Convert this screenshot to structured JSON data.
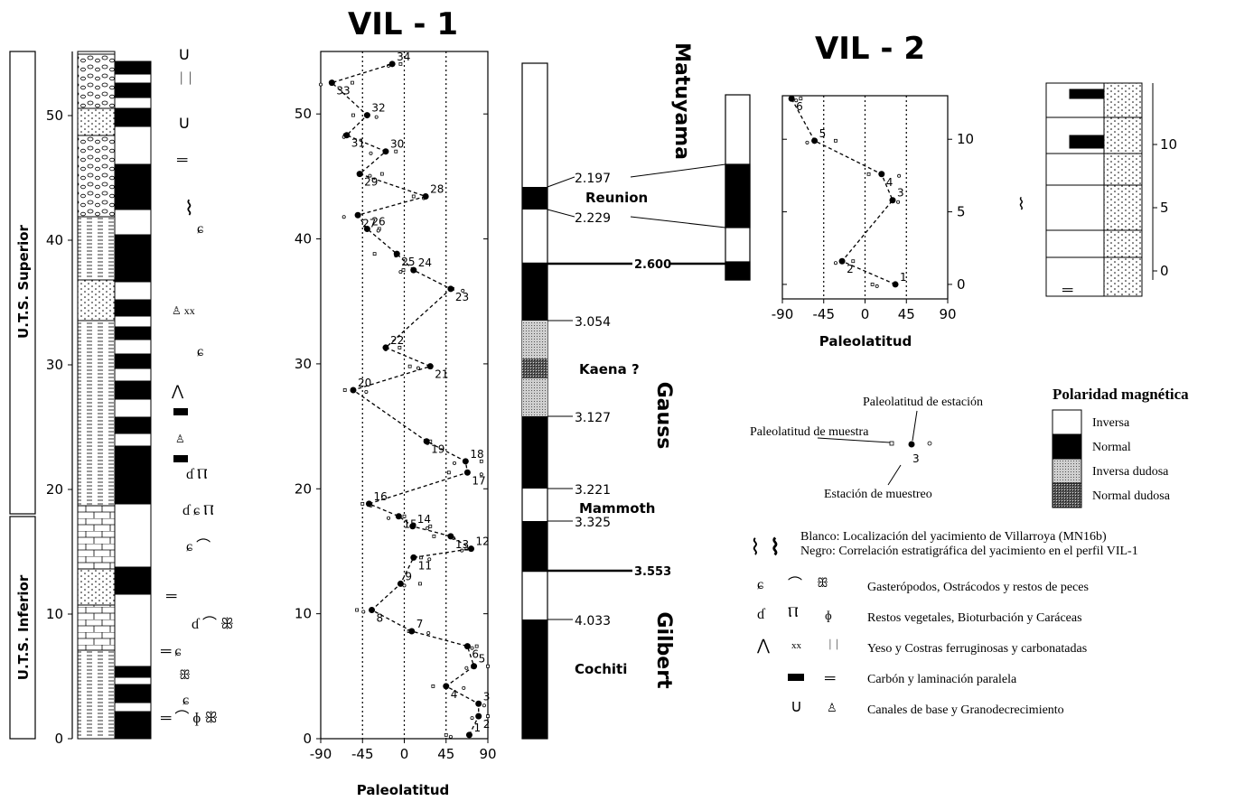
{
  "vil1": {
    "title": "VIL - 1",
    "xlabel": "Paleolatitud",
    "xticks": [
      "-90",
      "-45",
      "0",
      "45",
      "90"
    ],
    "yticks": [
      "0",
      "10",
      "20",
      "30",
      "40",
      "50"
    ],
    "xlim": [
      -90,
      90
    ],
    "ylim": [
      0,
      55
    ]
  },
  "vil2": {
    "title": "VIL - 2",
    "xlabel": "Paleolatitud",
    "xticks": [
      "-90",
      "-45",
      "0",
      "45",
      "90"
    ],
    "yticks": [
      "0",
      "5",
      "10"
    ],
    "xlim": [
      -90,
      90
    ],
    "ylim": [
      -1,
      13
    ],
    "column_ticks": [
      "0",
      "5",
      "10"
    ]
  },
  "left_column": {
    "units": [
      "U.T.S. Superior",
      "U.T.S. Inferior"
    ],
    "yticks": [
      "0",
      "10",
      "20",
      "30",
      "40",
      "50"
    ]
  },
  "timescale": {
    "chrons": [
      "Matuyama",
      "Gauss",
      "Gilbert"
    ],
    "subchrons": [
      "Reunion",
      "Kaena ?",
      "Mammoth",
      "Cochiti"
    ],
    "ages": [
      "2.197",
      "2.229",
      "2.600",
      "3.054",
      "3.127",
      "3.221",
      "3.325",
      "3.553",
      "4.033"
    ]
  },
  "legend": {
    "title": "Polaridad magnética",
    "items": [
      "Inversa",
      "Normal",
      "Inversa dudosa",
      "Normal dudosa"
    ],
    "key_station": "Paleolatitud de estación",
    "key_sample": "Paleolatitud de muestra",
    "key_site": "Estación de muestreo",
    "key_number": "3"
  },
  "symbols": {
    "fossil_1": "Blanco: Localización del yacimiento de Villarroya (MN16b)",
    "fossil_2": "Negro: Correlación estratigráfica del yacimiento en el perfil VIL-1",
    "gastropods": "Gasterópodos, Ostrácodos y restos de peces",
    "plants": "Restos vegetales, Bioturbación y Caráceas",
    "gypsum": "Yeso y Costras ferruginosas y carbonatadas",
    "coal": "Carbón y laminación paralela",
    "channels": "Canales de base y Granodecrecimiento"
  },
  "chart_data": [
    {
      "type": "line",
      "title": "VIL - 1",
      "xlabel": "Paleolatitud",
      "ylabel": "",
      "xlim": [
        -90,
        90
      ],
      "ylim": [
        0,
        55
      ],
      "series": [
        {
          "points": [
            {
              "label": "1",
              "x": 70,
              "y": 0.3
            },
            {
              "label": "2",
              "x": 80,
              "y": 1.8
            },
            {
              "label": "3",
              "x": 80,
              "y": 2.8
            },
            {
              "label": "4",
              "x": 45,
              "y": 4.2
            },
            {
              "label": "5",
              "x": 75,
              "y": 5.8
            },
            {
              "label": "6",
              "x": 68,
              "y": 7.4
            },
            {
              "label": "7",
              "x": 8,
              "y": 8.6
            },
            {
              "label": "8",
              "x": -35,
              "y": 10.3
            },
            {
              "label": "9",
              "x": -4,
              "y": 12.4
            },
            {
              "label": "11",
              "x": 10,
              "y": 14.5
            },
            {
              "label": "12",
              "x": 72,
              "y": 15.2
            },
            {
              "label": "13",
              "x": 50,
              "y": 16.2
            },
            {
              "label": "14",
              "x": 9,
              "y": 17
            },
            {
              "label": "15",
              "x": -6,
              "y": 17.8
            },
            {
              "label": "16",
              "x": -38,
              "y": 18.8
            },
            {
              "label": "17",
              "x": 68,
              "y": 21.3
            },
            {
              "label": "18",
              "x": 66,
              "y": 22.2
            },
            {
              "label": "19",
              "x": 24,
              "y": 23.8
            },
            {
              "label": "20",
              "x": -55,
              "y": 27.9
            },
            {
              "label": "21",
              "x": 28,
              "y": 29.8
            },
            {
              "label": "22",
              "x": -20,
              "y": 31.3
            },
            {
              "label": "23",
              "x": 50,
              "y": 36
            },
            {
              "label": "24",
              "x": 10,
              "y": 37.5
            },
            {
              "label": "25",
              "x": -8,
              "y": 38.8
            },
            {
              "label": "26",
              "x": -40,
              "y": 40.8
            },
            {
              "label": "27",
              "x": -50,
              "y": 41.9
            },
            {
              "label": "28",
              "x": 23,
              "y": 43.4
            },
            {
              "label": "29",
              "x": -48,
              "y": 45.2
            },
            {
              "label": "30",
              "x": -20,
              "y": 47
            },
            {
              "label": "31",
              "x": -62,
              "y": 48.3
            },
            {
              "label": "32",
              "x": -40,
              "y": 49.9
            },
            {
              "label": "33",
              "x": -78,
              "y": 52.5
            },
            {
              "label": "34",
              "x": -13,
              "y": 54
            }
          ]
        }
      ]
    },
    {
      "type": "line",
      "title": "VIL - 2",
      "xlabel": "Paleolatitud",
      "ylabel": "",
      "xlim": [
        -90,
        90
      ],
      "ylim": [
        -1,
        13
      ],
      "series": [
        {
          "points": [
            {
              "label": "1",
              "x": 33,
              "y": 0
            },
            {
              "label": "2",
              "x": -25,
              "y": 1.6
            },
            {
              "label": "3",
              "x": 30,
              "y": 5.8
            },
            {
              "label": "4",
              "x": 18,
              "y": 7.6
            },
            {
              "label": "5",
              "x": -55,
              "y": 9.9
            },
            {
              "label": "6",
              "x": -80,
              "y": 12.8
            }
          ]
        }
      ]
    }
  ]
}
